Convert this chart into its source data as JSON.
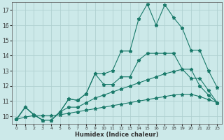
{
  "xlabel": "Humidex (Indice chaleur)",
  "xlim": [
    -0.5,
    23.5
  ],
  "ylim": [
    9.5,
    17.5
  ],
  "xticks": [
    0,
    1,
    2,
    3,
    4,
    5,
    6,
    7,
    8,
    9,
    10,
    11,
    12,
    13,
    14,
    15,
    16,
    17,
    18,
    19,
    20,
    21,
    22,
    23
  ],
  "yticks": [
    10,
    11,
    12,
    13,
    14,
    15,
    16,
    17
  ],
  "bg_color": "#cce9e9",
  "grid_color": "#b0d0d0",
  "line_color": "#1a7a6a",
  "series1_x": [
    0,
    1,
    2,
    3,
    4,
    5,
    6,
    7,
    8,
    9,
    10,
    11,
    12,
    13,
    14,
    15,
    16,
    17,
    18,
    19,
    20,
    21,
    22,
    23
  ],
  "series1_y": [
    9.8,
    10.6,
    10.1,
    9.75,
    9.75,
    10.3,
    11.15,
    11.05,
    11.5,
    12.8,
    12.8,
    13.0,
    14.3,
    14.3,
    16.4,
    17.4,
    16.0,
    17.35,
    16.5,
    15.8,
    14.35,
    14.35,
    13.0,
    11.9
  ],
  "series2_x": [
    0,
    1,
    2,
    3,
    4,
    5,
    6,
    7,
    8,
    9,
    10,
    11,
    12,
    13,
    14,
    15,
    16,
    17,
    18,
    19,
    20,
    21,
    22,
    23
  ],
  "series2_y": [
    9.8,
    10.6,
    10.1,
    9.75,
    9.75,
    10.3,
    11.15,
    11.05,
    11.5,
    12.8,
    12.1,
    12.1,
    12.6,
    12.6,
    13.7,
    14.15,
    14.15,
    14.15,
    14.15,
    13.1,
    12.5,
    12.5,
    11.7,
    10.9
  ],
  "series3_x": [
    0,
    1,
    2,
    3,
    4,
    5,
    6,
    7,
    8,
    9,
    10,
    11,
    12,
    13,
    14,
    15,
    16,
    17,
    18,
    19,
    20,
    21,
    22,
    23
  ],
  "series3_y": [
    9.8,
    10.6,
    10.1,
    9.75,
    9.75,
    10.3,
    10.6,
    10.6,
    10.9,
    11.2,
    11.4,
    11.6,
    11.8,
    12.0,
    12.2,
    12.4,
    12.6,
    12.8,
    12.95,
    13.1,
    13.1,
    12.0,
    11.4,
    10.9
  ],
  "series4_x": [
    0,
    1,
    2,
    3,
    4,
    5,
    6,
    7,
    8,
    9,
    10,
    11,
    12,
    13,
    14,
    15,
    16,
    17,
    18,
    19,
    20,
    21,
    22,
    23
  ],
  "series4_y": [
    9.8,
    9.95,
    10.05,
    10.05,
    10.05,
    10.1,
    10.2,
    10.3,
    10.4,
    10.5,
    10.6,
    10.7,
    10.8,
    10.9,
    11.0,
    11.1,
    11.2,
    11.3,
    11.4,
    11.45,
    11.45,
    11.3,
    11.1,
    10.9
  ]
}
